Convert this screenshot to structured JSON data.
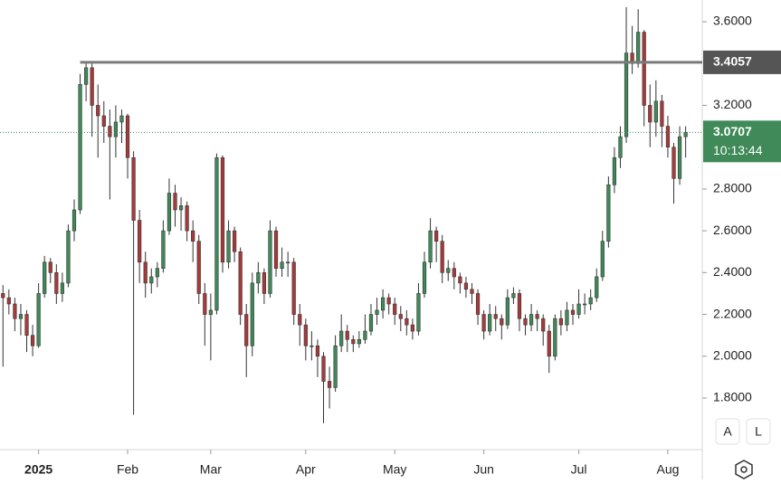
{
  "chart_data": {
    "type": "candlestick",
    "candles": [
      [
        2.3,
        2.34,
        1.95,
        2.28
      ],
      [
        2.28,
        2.32,
        2.2,
        2.25
      ],
      [
        2.25,
        2.28,
        2.12,
        2.18
      ],
      [
        2.18,
        2.25,
        2.1,
        2.2
      ],
      [
        2.2,
        2.22,
        2.02,
        2.1
      ],
      [
        2.1,
        2.15,
        2.0,
        2.05
      ],
      [
        2.05,
        2.35,
        2.04,
        2.3
      ],
      [
        2.3,
        2.48,
        2.28,
        2.45
      ],
      [
        2.45,
        2.47,
        2.35,
        2.4
      ],
      [
        2.4,
        2.44,
        2.25,
        2.3
      ],
      [
        2.3,
        2.4,
        2.26,
        2.35
      ],
      [
        2.35,
        2.63,
        2.33,
        2.6
      ],
      [
        2.6,
        2.75,
        2.55,
        2.7
      ],
      [
        2.7,
        3.35,
        2.68,
        3.3
      ],
      [
        3.3,
        3.41,
        3.22,
        3.38
      ],
      [
        3.38,
        3.4,
        3.05,
        3.2
      ],
      [
        3.2,
        3.3,
        2.95,
        3.15
      ],
      [
        3.15,
        3.22,
        3.02,
        3.1
      ],
      [
        3.1,
        3.18,
        2.75,
        3.05
      ],
      [
        3.05,
        3.2,
        2.95,
        3.12
      ],
      [
        3.12,
        3.18,
        3.02,
        3.15
      ],
      [
        3.15,
        3.16,
        2.85,
        2.95
      ],
      [
        2.95,
        2.98,
        1.72,
        2.65
      ],
      [
        2.65,
        2.7,
        2.35,
        2.45
      ],
      [
        2.45,
        2.5,
        2.28,
        2.35
      ],
      [
        2.35,
        2.42,
        2.3,
        2.38
      ],
      [
        2.38,
        2.45,
        2.33,
        2.42
      ],
      [
        2.42,
        2.65,
        2.4,
        2.6
      ],
      [
        2.6,
        2.85,
        2.58,
        2.78
      ],
      [
        2.78,
        2.82,
        2.62,
        2.7
      ],
      [
        2.7,
        2.76,
        2.6,
        2.72
      ],
      [
        2.72,
        2.74,
        2.55,
        2.6
      ],
      [
        2.6,
        2.65,
        2.45,
        2.55
      ],
      [
        2.55,
        2.58,
        2.25,
        2.3
      ],
      [
        2.3,
        2.35,
        2.05,
        2.2
      ],
      [
        2.2,
        2.3,
        1.98,
        2.22
      ],
      [
        2.22,
        2.97,
        2.2,
        2.95
      ],
      [
        2.95,
        2.96,
        2.4,
        2.45
      ],
      [
        2.45,
        2.65,
        2.42,
        2.6
      ],
      [
        2.6,
        2.62,
        2.45,
        2.5
      ],
      [
        2.5,
        2.52,
        2.15,
        2.2
      ],
      [
        2.2,
        2.25,
        1.9,
        2.05
      ],
      [
        2.05,
        2.4,
        2.0,
        2.35
      ],
      [
        2.35,
        2.45,
        2.3,
        2.4
      ],
      [
        2.4,
        2.42,
        2.25,
        2.3
      ],
      [
        2.3,
        2.65,
        2.28,
        2.6
      ],
      [
        2.6,
        2.62,
        2.38,
        2.42
      ],
      [
        2.42,
        2.52,
        2.38,
        2.45
      ],
      [
        2.45,
        2.5,
        2.38,
        2.45
      ],
      [
        2.45,
        2.47,
        2.15,
        2.2
      ],
      [
        2.2,
        2.25,
        2.05,
        2.15
      ],
      [
        2.15,
        2.18,
        1.98,
        2.05
      ],
      [
        2.05,
        2.12,
        1.98,
        2.05
      ],
      [
        2.05,
        2.08,
        1.9,
        2.0
      ],
      [
        2.0,
        2.02,
        1.68,
        1.88
      ],
      [
        1.88,
        1.95,
        1.75,
        1.85
      ],
      [
        1.85,
        2.1,
        1.83,
        2.05
      ],
      [
        2.05,
        2.2,
        2.02,
        2.12
      ],
      [
        2.12,
        2.15,
        2.02,
        2.08
      ],
      [
        2.08,
        2.1,
        2.02,
        2.06
      ],
      [
        2.06,
        2.12,
        2.04,
        2.08
      ],
      [
        2.08,
        2.2,
        2.06,
        2.12
      ],
      [
        2.12,
        2.25,
        2.1,
        2.2
      ],
      [
        2.2,
        2.28,
        2.15,
        2.22
      ],
      [
        2.22,
        2.32,
        2.18,
        2.28
      ],
      [
        2.28,
        2.3,
        2.2,
        2.25
      ],
      [
        2.25,
        2.28,
        2.15,
        2.2
      ],
      [
        2.2,
        2.24,
        2.12,
        2.18
      ],
      [
        2.18,
        2.22,
        2.1,
        2.15
      ],
      [
        2.15,
        2.18,
        2.08,
        2.12
      ],
      [
        2.12,
        2.35,
        2.1,
        2.3
      ],
      [
        2.3,
        2.5,
        2.28,
        2.45
      ],
      [
        2.45,
        2.66,
        2.42,
        2.6
      ],
      [
        2.6,
        2.62,
        2.45,
        2.55
      ],
      [
        2.55,
        2.58,
        2.35,
        2.4
      ],
      [
        2.4,
        2.46,
        2.36,
        2.42
      ],
      [
        2.42,
        2.45,
        2.32,
        2.38
      ],
      [
        2.38,
        2.4,
        2.3,
        2.35
      ],
      [
        2.35,
        2.38,
        2.28,
        2.32
      ],
      [
        2.32,
        2.35,
        2.25,
        2.3
      ],
      [
        2.3,
        2.32,
        2.15,
        2.2
      ],
      [
        2.2,
        2.22,
        2.08,
        2.12
      ],
      [
        2.12,
        2.25,
        2.1,
        2.2
      ],
      [
        2.2,
        2.24,
        2.12,
        2.18
      ],
      [
        2.18,
        2.2,
        2.08,
        2.15
      ],
      [
        2.15,
        2.32,
        2.13,
        2.28
      ],
      [
        2.28,
        2.33,
        2.25,
        2.3
      ],
      [
        2.3,
        2.32,
        2.12,
        2.18
      ],
      [
        2.18,
        2.2,
        2.1,
        2.15
      ],
      [
        2.15,
        2.25,
        2.12,
        2.2
      ],
      [
        2.2,
        2.22,
        2.12,
        2.18
      ],
      [
        2.18,
        2.2,
        2.05,
        2.12
      ],
      [
        2.12,
        2.15,
        1.92,
        2.0
      ],
      [
        2.0,
        2.2,
        1.98,
        2.18
      ],
      [
        2.18,
        2.22,
        2.1,
        2.15
      ],
      [
        2.15,
        2.26,
        2.12,
        2.22
      ],
      [
        2.22,
        2.25,
        2.15,
        2.2
      ],
      [
        2.2,
        2.32,
        2.18,
        2.25
      ],
      [
        2.25,
        2.3,
        2.2,
        2.25
      ],
      [
        2.25,
        2.32,
        2.22,
        2.28
      ],
      [
        2.28,
        2.42,
        2.26,
        2.38
      ],
      [
        2.38,
        2.6,
        2.36,
        2.55
      ],
      [
        2.55,
        2.86,
        2.52,
        2.82
      ],
      [
        2.82,
        3.0,
        2.78,
        2.95
      ],
      [
        2.95,
        3.1,
        2.9,
        3.05
      ],
      [
        3.05,
        3.67,
        3.02,
        3.45
      ],
      [
        3.45,
        3.58,
        3.35,
        3.4
      ],
      [
        3.4,
        3.66,
        3.38,
        3.55
      ],
      [
        3.55,
        3.56,
        3.1,
        3.2
      ],
      [
        3.2,
        3.3,
        3.0,
        3.12
      ],
      [
        3.12,
        3.32,
        3.05,
        3.22
      ],
      [
        3.22,
        3.25,
        3.0,
        3.1
      ],
      [
        3.1,
        3.15,
        2.95,
        3.0
      ],
      [
        3.0,
        3.02,
        2.73,
        2.85
      ],
      [
        2.85,
        3.1,
        2.82,
        3.05
      ],
      [
        3.05,
        3.1,
        2.95,
        3.0707
      ]
    ],
    "up_color": "#3f8a58",
    "down_color": "#a83a3a",
    "xlim": [
      -0.5,
      117.8
    ],
    "xticks": [
      {
        "value": 6,
        "label": "2025"
      },
      {
        "value": 21,
        "label": "Feb"
      },
      {
        "value": 35,
        "label": "Mar"
      },
      {
        "value": 51,
        "label": "Apr"
      },
      {
        "value": 66,
        "label": "May"
      },
      {
        "value": 81,
        "label": "Jun"
      },
      {
        "value": 97,
        "label": "Jul"
      },
      {
        "value": 112,
        "label": "Aug"
      }
    ],
    "ylim": [
      1.5836,
      3.7039
    ],
    "yticks": [
      {
        "value": 1.8,
        "label": "1.8000"
      },
      {
        "value": 2.0,
        "label": "2.0000"
      },
      {
        "value": 2.2,
        "label": "2.2000"
      },
      {
        "value": 2.4,
        "label": "2.4000"
      },
      {
        "value": 2.6,
        "label": "2.6000"
      },
      {
        "value": 2.8,
        "label": "2.8000"
      },
      {
        "value": 3.2,
        "label": "3.2000"
      },
      {
        "value": 3.6,
        "label": "3.6000"
      }
    ],
    "hline": 3.4057,
    "last_price": 3.0707,
    "countdown": "10:13:44",
    "buttons": [
      "A",
      "L"
    ]
  }
}
